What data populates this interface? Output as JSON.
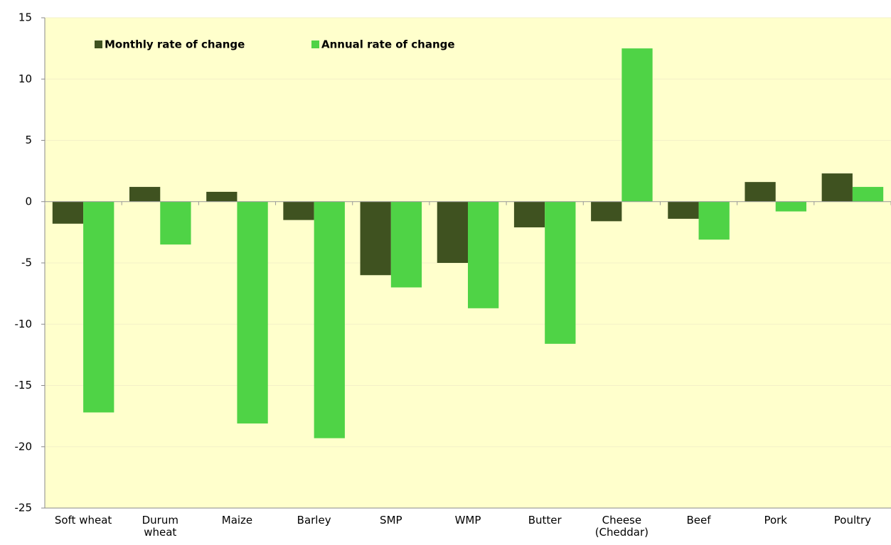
{
  "chart_data": {
    "type": "bar",
    "categories": [
      "Soft wheat",
      "Durum\nwheat",
      "Maize",
      "Barley",
      "SMP",
      "WMP",
      "Butter",
      "Cheese\n(Cheddar)",
      "Beef",
      "Pork",
      "Poultry"
    ],
    "series": [
      {
        "name": "Monthly rate of change",
        "color": "#3f5220",
        "values": [
          -1.8,
          1.2,
          0.8,
          -1.5,
          -6.0,
          -5.0,
          -2.1,
          -1.6,
          -1.4,
          1.6,
          2.3
        ]
      },
      {
        "name": "Annual rate of change",
        "color": "#4fd346",
        "values": [
          -17.2,
          -3.5,
          -18.1,
          -19.3,
          -7.0,
          -8.7,
          -11.6,
          12.5,
          -3.1,
          -0.8,
          1.2
        ]
      }
    ],
    "ylim": [
      -25,
      15
    ],
    "yticks": [
      -25,
      -20,
      -15,
      -10,
      -5,
      0,
      5,
      10,
      15
    ],
    "grid": true,
    "legend": "top-left",
    "background": "#ffffcc"
  }
}
